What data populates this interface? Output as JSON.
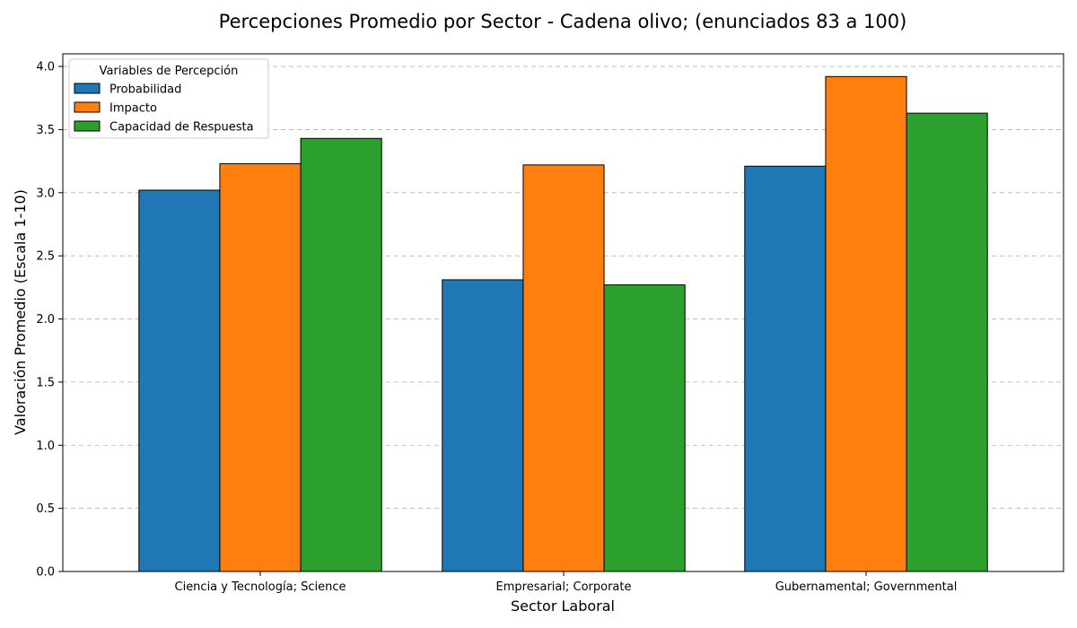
{
  "chart_data": {
    "type": "bar",
    "title": "Percepciones Promedio por Sector - Cadena olivo;  (enunciados 83 a 100)",
    "xlabel": "Sector Laboral",
    "ylabel": "Valoración Promedio (Escala 1-10)",
    "ylim": [
      0,
      4.1
    ],
    "yticks": [
      "0.0",
      "0.5",
      "1.0",
      "1.5",
      "2.0",
      "2.5",
      "3.0",
      "3.5",
      "4.0"
    ],
    "grid": "y-dashed",
    "legend": {
      "title": "Variables de Percepción",
      "placement": "top-left"
    },
    "categories": [
      "Ciencia y Tecnología; Science",
      "Empresarial; Corporate",
      "Gubernamental; Governmental"
    ],
    "series": [
      {
        "name": "Probabilidad",
        "color": "#1f77b4",
        "values": [
          3.02,
          2.31,
          3.21
        ]
      },
      {
        "name": "Impacto",
        "color": "#ff7f0e",
        "values": [
          3.23,
          3.22,
          3.92
        ]
      },
      {
        "name": "Capacidad de Respuesta",
        "color": "#2ca02c",
        "values": [
          3.43,
          2.27,
          3.63
        ]
      }
    ]
  }
}
